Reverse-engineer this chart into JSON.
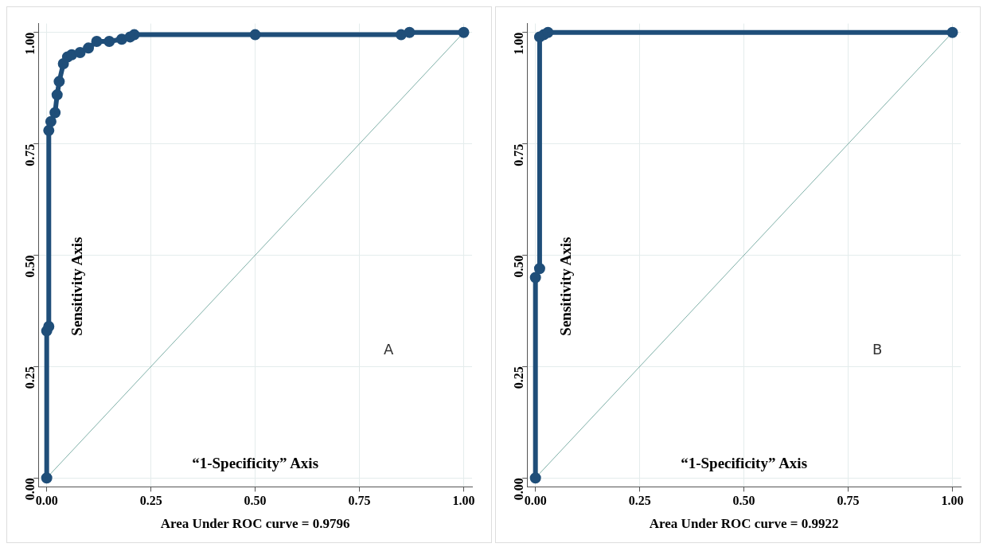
{
  "chart_data": [
    {
      "type": "line",
      "xlabel": "Area Under ROC curve = 0.9796",
      "annotations": [
        "Sensitivity Axis",
        "“1-Specificity” Axis",
        "A"
      ],
      "xlim": [
        -0.02,
        1.02
      ],
      "ylim": [
        -0.02,
        1.02
      ],
      "xticks": [
        {
          "value": 0,
          "label": "0.00"
        },
        {
          "value": 0.25,
          "label": "0.25"
        },
        {
          "value": 0.5,
          "label": "0.50"
        },
        {
          "value": 0.75,
          "label": "0.75"
        },
        {
          "value": 1,
          "label": "1.00"
        }
      ],
      "yticks": [
        {
          "value": 0,
          "label": "0.00"
        },
        {
          "value": 0.25,
          "label": "0.25"
        },
        {
          "value": 0.5,
          "label": "0.50"
        },
        {
          "value": 0.75,
          "label": "0.75"
        },
        {
          "value": 1,
          "label": "1.00"
        }
      ],
      "grid": true,
      "marker": "circle",
      "series": [
        {
          "color": "#1f4e79",
          "x": [
            0,
            0,
            0.005,
            0.005,
            0.01,
            0.02,
            0.025,
            0.03,
            0.04,
            0.05,
            0.06,
            0.08,
            0.1,
            0.12,
            0.15,
            0.18,
            0.2,
            0.21,
            0.5,
            0.85,
            0.87,
            1
          ],
          "values": [
            0,
            0.33,
            0.34,
            0.78,
            0.8,
            0.82,
            0.86,
            0.89,
            0.93,
            0.945,
            0.95,
            0.955,
            0.965,
            0.98,
            0.98,
            0.985,
            0.99,
            0.995,
            0.995,
            0.995,
            1,
            1
          ]
        },
        {
          "color": "#7fb0a8",
          "marker": "none",
          "x": [
            0,
            1
          ],
          "values": [
            0,
            1
          ]
        }
      ]
    },
    {
      "type": "line",
      "xlabel": "Area Under ROC curve = 0.9922",
      "annotations": [
        "Sensitivity Axis",
        "“1-Specificity” Axis",
        "B"
      ],
      "xlim": [
        -0.02,
        1.02
      ],
      "ylim": [
        -0.02,
        1.02
      ],
      "xticks": [
        {
          "value": 0,
          "label": "0.00"
        },
        {
          "value": 0.25,
          "label": "0.25"
        },
        {
          "value": 0.5,
          "label": "0.50"
        },
        {
          "value": 0.75,
          "label": "0.75"
        },
        {
          "value": 1,
          "label": "1.00"
        }
      ],
      "yticks": [
        {
          "value": 0,
          "label": "0.00"
        },
        {
          "value": 0.25,
          "label": "0.25"
        },
        {
          "value": 0.5,
          "label": "0.50"
        },
        {
          "value": 0.75,
          "label": "0.75"
        },
        {
          "value": 1,
          "label": "1.00"
        }
      ],
      "grid": true,
      "marker": "circle",
      "series": [
        {
          "color": "#1f4e79",
          "x": [
            0,
            0,
            0.01,
            0.01,
            0.02,
            0.03,
            1
          ],
          "values": [
            0,
            0.45,
            0.47,
            0.99,
            0.995,
            1,
            1
          ]
        },
        {
          "color": "#7fb0a8",
          "marker": "none",
          "x": [
            0,
            1
          ],
          "values": [
            0,
            1
          ]
        }
      ]
    }
  ]
}
